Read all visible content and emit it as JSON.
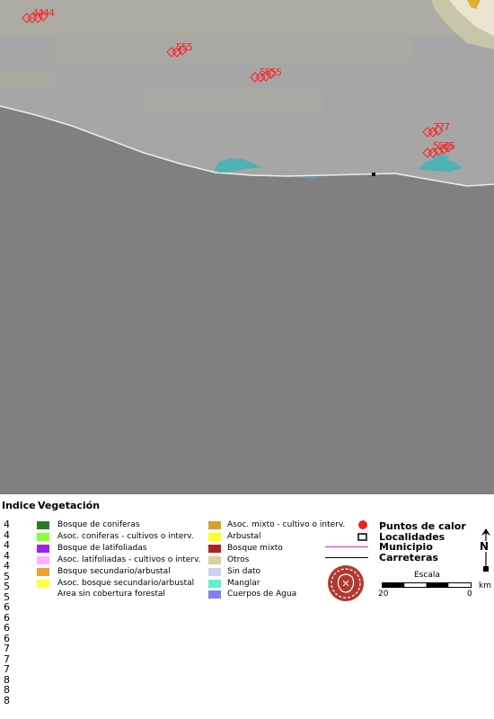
{
  "map": {
    "hotspots": [
      {
        "label": "4444"
      },
      {
        "label": "555"
      },
      {
        "label": "5555"
      },
      {
        "label": "777"
      },
      {
        "label": "5555"
      }
    ],
    "colors": {
      "land": "#a6a6a6",
      "sea": "#7f7f7f",
      "water": "#4fb3b3",
      "hotspot": "#ff2020"
    }
  },
  "legend": {
    "indice_header": "Indice",
    "vegetacion_header": "Vegetación",
    "indices": [
      "4",
      "4",
      "4",
      "4",
      "4",
      "5",
      "5",
      "5",
      "6",
      "6",
      "6",
      "6",
      "7",
      "7",
      "7",
      "8",
      "8",
      "8"
    ],
    "veg_left": [
      {
        "label": "Bosque de coniferas",
        "color": "#2a7a2a"
      },
      {
        "label": "Asoc. coniferas - cultivos o interv.",
        "color": "#88ff33"
      },
      {
        "label": "Bosque de latifoliadas",
        "color": "#a020f0"
      },
      {
        "label": "Asoc. latifoliadas - cultivos o interv.",
        "color": "#ffb0ff"
      },
      {
        "label": "Bosque secundario/arbustal",
        "color": "#f0a030"
      },
      {
        "label": "Asoc. bosque secundario/arbustal",
        "color": "#ffff40"
      },
      {
        "label": "Area sin cobertura forestal",
        "color": ""
      }
    ],
    "veg_right": [
      {
        "label": "Asoc. mixto - cultivo o interv.",
        "color": "#d4a030"
      },
      {
        "label": "Arbustal",
        "color": "#ffff20"
      },
      {
        "label": "Bosque mixto",
        "color": "#b02020"
      },
      {
        "label": "Otros",
        "color": "#d8d0a0"
      },
      {
        "label": "Sin dato",
        "color": "#d0d0f0"
      },
      {
        "label": "Manglar",
        "color": "#60f0d0"
      },
      {
        "label": "Cuerpos de Agua",
        "color": "#8080f0"
      }
    ],
    "symbols": {
      "puntos": "Puntos de calor",
      "localidades": "Localidades",
      "municipio": "Municipio",
      "carreteras": "Carreteras"
    },
    "north": "N",
    "scale": {
      "title": "Escala",
      "left": "20",
      "right": "0",
      "unit": "km"
    }
  }
}
